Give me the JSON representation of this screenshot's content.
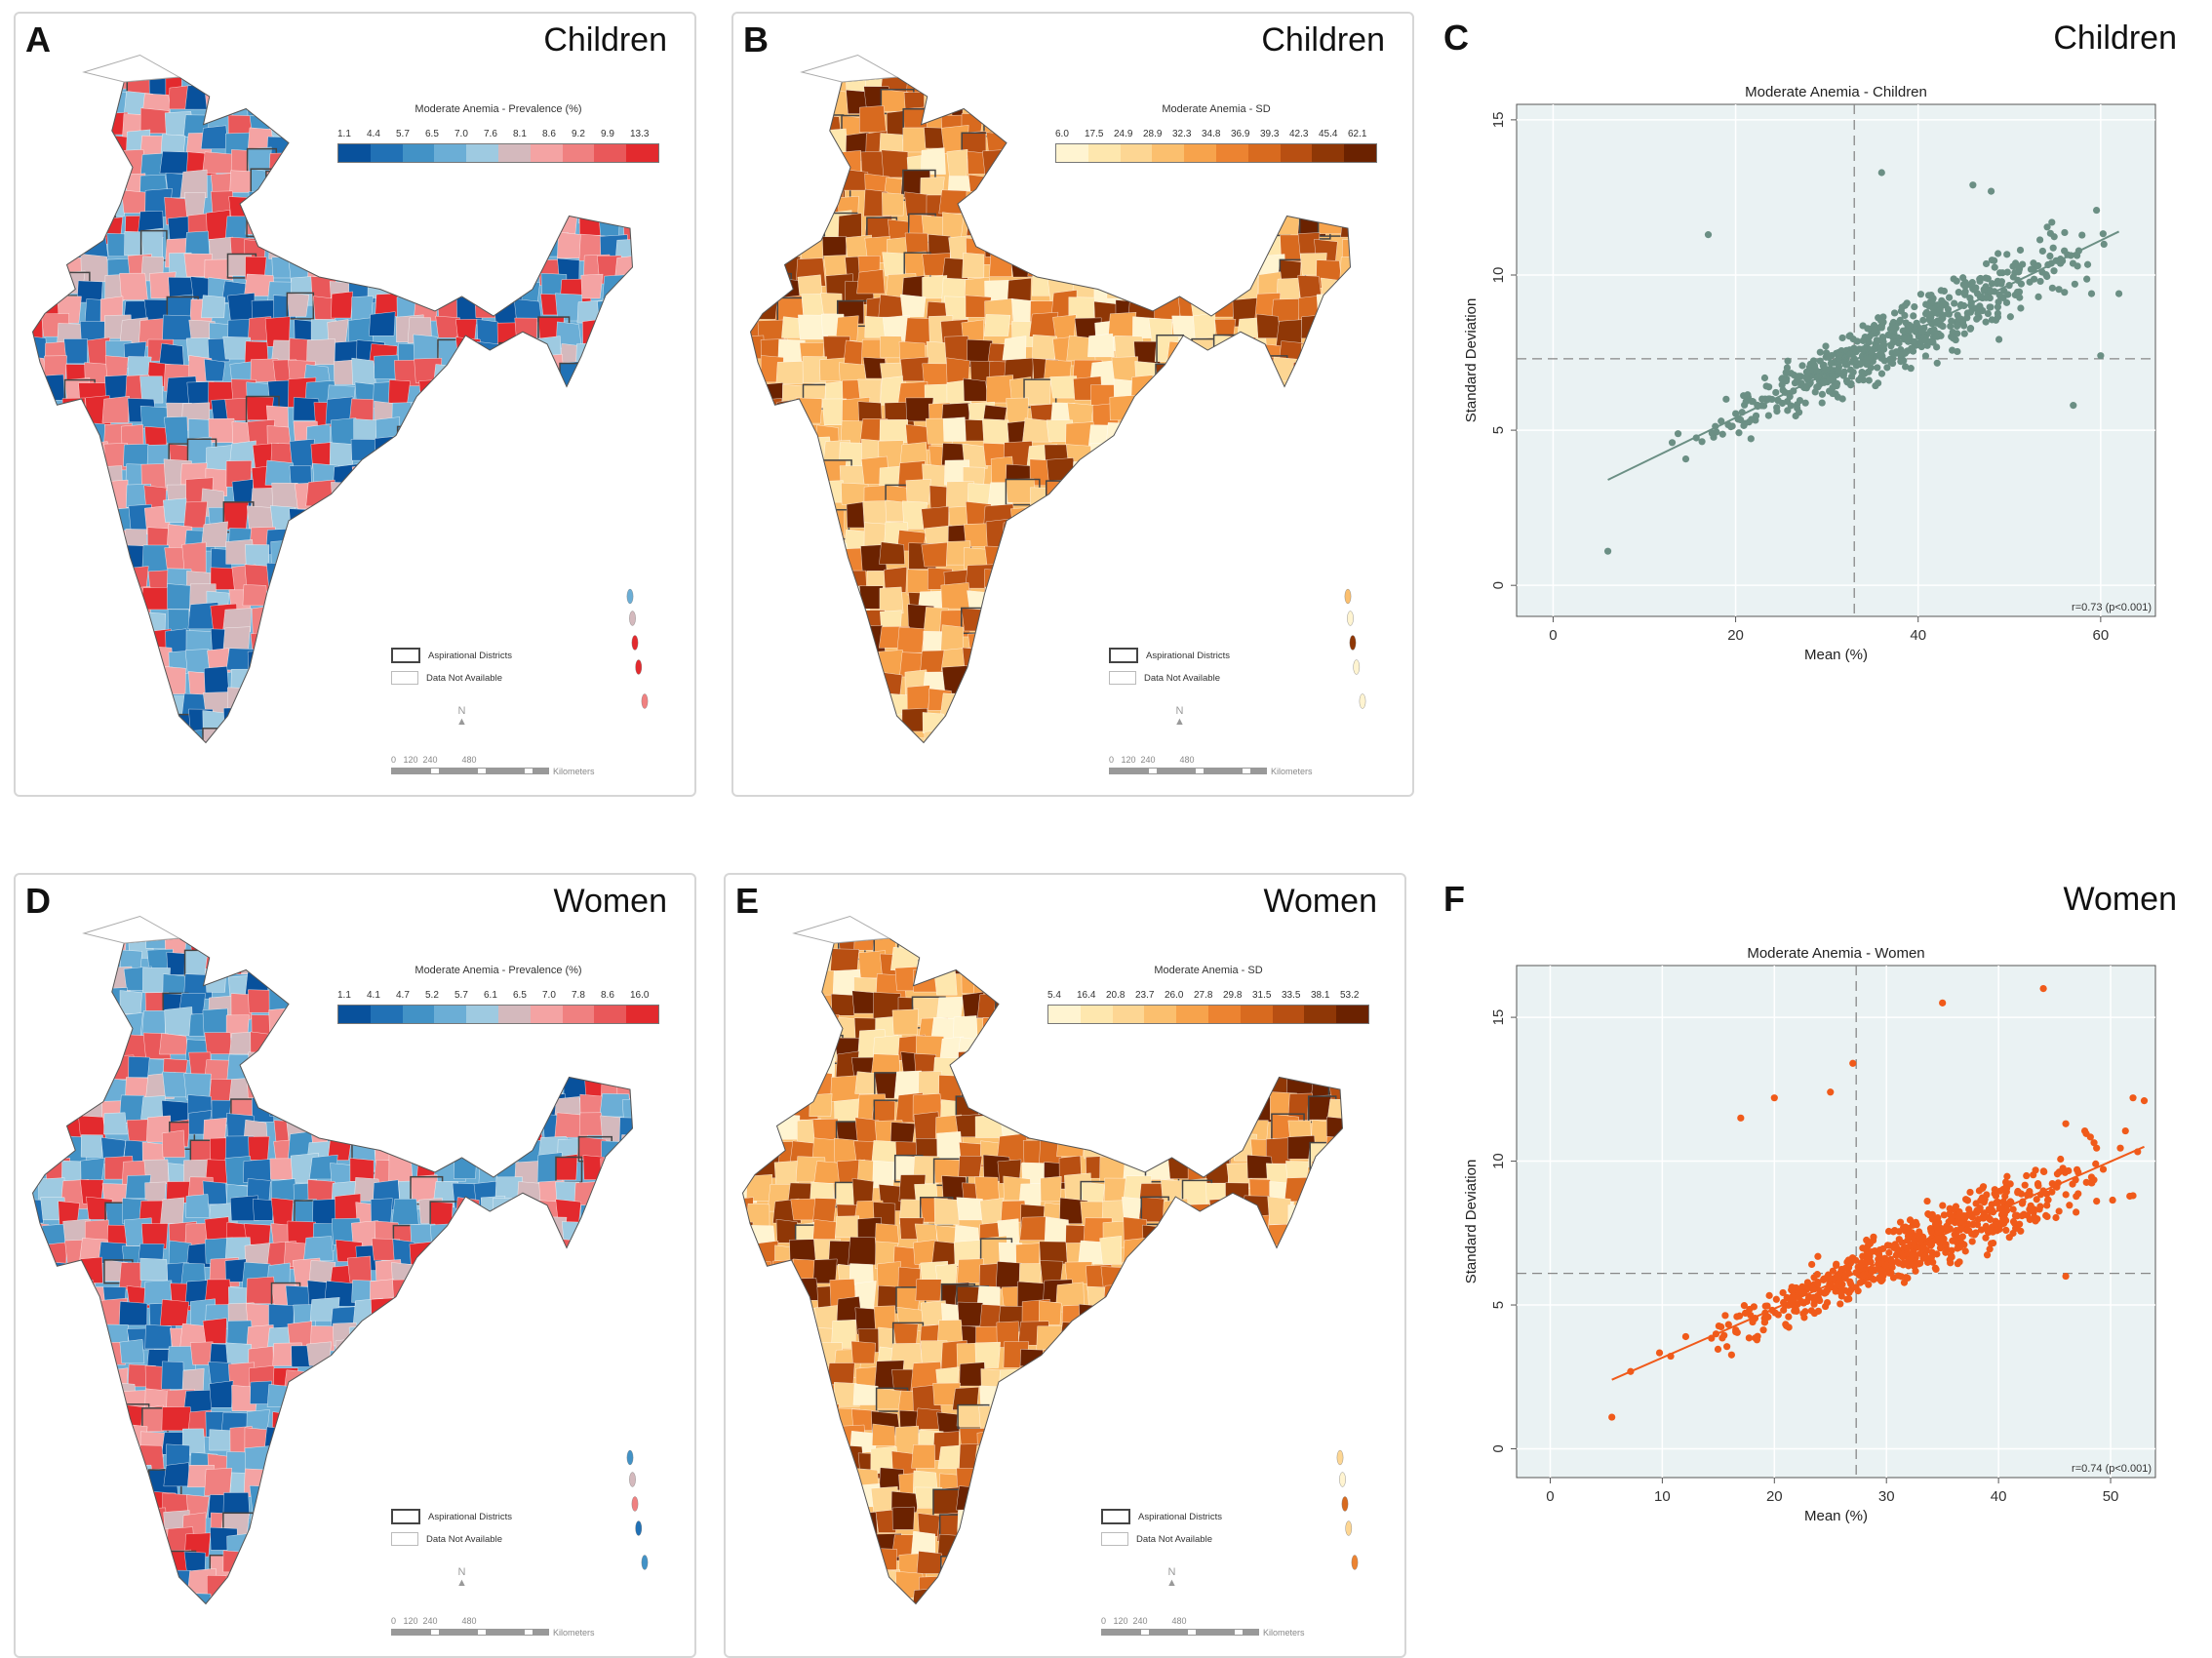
{
  "colors": {
    "prevalence_children": [
      "#08519c",
      "#2171b5",
      "#4292c6",
      "#6baed6",
      "#9ecae1",
      "#d4b9bd",
      "#f4a3a3",
      "#f08080",
      "#e9585a",
      "#e32a2e"
    ],
    "sd_children": [
      "#fff4d1",
      "#fee7ae",
      "#fdd693",
      "#fbbf6e",
      "#f7a34c",
      "#ec8331",
      "#d86a1f",
      "#b84f12",
      "#8f3706",
      "#6b2200"
    ],
    "prevalence_women": [
      "#08519c",
      "#2171b5",
      "#4292c6",
      "#6baed6",
      "#9ecae1",
      "#d4b9bd",
      "#f4a3a3",
      "#f08080",
      "#e9585a",
      "#e32a2e"
    ],
    "sd_women": [
      "#fff4d1",
      "#fee7ae",
      "#fdd693",
      "#fbbf6e",
      "#f7a34c",
      "#ec8331",
      "#d86a1f",
      "#b84f12",
      "#8f3706",
      "#6b2200"
    ],
    "scatter_children": "#6b8f84",
    "scatter_women": "#f05a1a"
  },
  "panels": {
    "a": {
      "letter": "A",
      "title": "Children",
      "legend_title": "Moderate Anemia - Prevalence (%)",
      "ticks": [
        "1.1",
        "4.4",
        "5.7",
        "6.5",
        "7.0",
        "7.6",
        "8.1",
        "8.6",
        "9.2",
        "9.9",
        "13.3"
      ]
    },
    "b": {
      "letter": "B",
      "title": "Children",
      "legend_title": "Moderate Anemia - SD",
      "ticks": [
        "6.0",
        "17.5",
        "24.9",
        "28.9",
        "32.3",
        "34.8",
        "36.9",
        "39.3",
        "42.3",
        "45.4",
        "62.1"
      ]
    },
    "c": {
      "letter": "C",
      "title": "Children"
    },
    "d": {
      "letter": "D",
      "title": "Women",
      "legend_title": "Moderate Anemia - Prevalence (%)",
      "ticks": [
        "1.1",
        "4.1",
        "4.7",
        "5.2",
        "5.7",
        "6.1",
        "6.5",
        "7.0",
        "7.8",
        "8.6",
        "16.0"
      ]
    },
    "e": {
      "letter": "E",
      "title": "Women",
      "legend_title": "Moderate Anemia - SD",
      "ticks": [
        "5.4",
        "16.4",
        "20.8",
        "23.7",
        "26.0",
        "27.8",
        "29.8",
        "31.5",
        "33.5",
        "38.1",
        "53.2"
      ]
    },
    "f": {
      "letter": "F",
      "title": "Women"
    }
  },
  "map_common": {
    "aspirational": "Aspirational Districts",
    "not_available": "Data Not Available",
    "scale_ticks": "0   120  240          480",
    "scale_unit": "Kilometers",
    "north": "N"
  },
  "chart_data": [
    {
      "type": "scatter",
      "title": "Moderate Anemia - Children",
      "xlabel": "Mean (%)",
      "ylabel": "Standard Deviation",
      "xlim": [
        -4,
        66
      ],
      "ylim": [
        -1,
        15.5
      ],
      "xticks": [
        0,
        20,
        40,
        60
      ],
      "yticks": [
        0,
        5,
        10,
        15
      ],
      "mean_x": 33,
      "mean_y": 7.3,
      "fit": {
        "x": [
          6,
          62
        ],
        "y": [
          3.4,
          11.4
        ]
      },
      "annotation": "r=0.73 (p<0.001)",
      "n_points": 600,
      "x_range": [
        6,
        62
      ],
      "outliers": [
        [
          36,
          13.3
        ],
        [
          46,
          12.9
        ],
        [
          48,
          12.7
        ],
        [
          17,
          11.3
        ],
        [
          59,
          9.4
        ],
        [
          62,
          9.4
        ],
        [
          57,
          5.8
        ],
        [
          6,
          1.1
        ],
        [
          60,
          7.4
        ]
      ]
    },
    {
      "type": "scatter",
      "title": "Moderate Anemia - Women",
      "xlabel": "Mean (%)",
      "ylabel": "Standard Deviation",
      "xlim": [
        -3,
        54
      ],
      "ylim": [
        -1,
        16.8
      ],
      "xticks": [
        0,
        10,
        20,
        30,
        40,
        50
      ],
      "yticks": [
        0,
        5,
        10,
        15
      ],
      "mean_x": 27.3,
      "mean_y": 6.1,
      "fit": {
        "x": [
          5.5,
          53
        ],
        "y": [
          2.4,
          10.5
        ]
      },
      "annotation": "r=0.74 (p<0.001)",
      "n_points": 640,
      "x_range": [
        5.5,
        53
      ],
      "outliers": [
        [
          44,
          16
        ],
        [
          35,
          15.5
        ],
        [
          27,
          13.4
        ],
        [
          25,
          12.4
        ],
        [
          20,
          12.2
        ],
        [
          17,
          11.5
        ],
        [
          52,
          12.2
        ],
        [
          53,
          12.1
        ],
        [
          46,
          11.3
        ],
        [
          52,
          8.8
        ],
        [
          5.5,
          1.1
        ],
        [
          46,
          6.0
        ]
      ]
    }
  ]
}
